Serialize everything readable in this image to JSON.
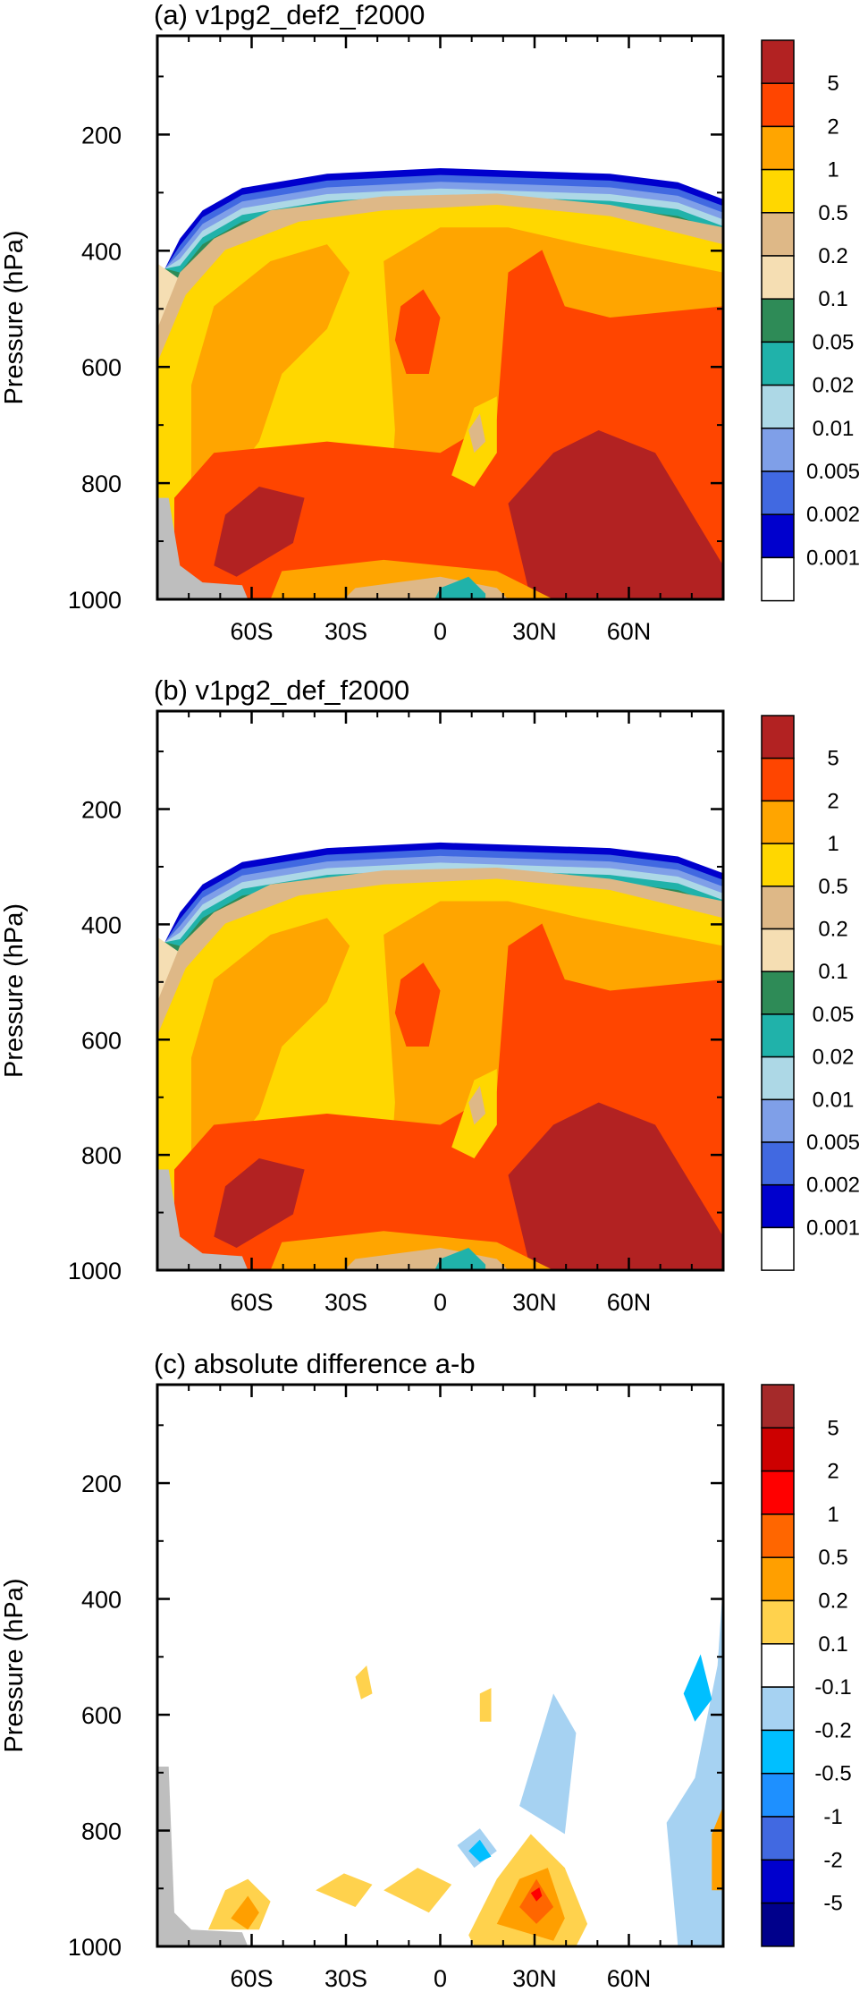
{
  "chart_data": [
    {
      "type": "heatmap",
      "title": "(a) v1pg2_def2_f2000",
      "ylabel": "Pressure (hPa)",
      "xlabel": "",
      "x_ticks": [
        "60S",
        "30S",
        "0",
        "30N",
        "60N"
      ],
      "x_tick_values": [
        -60,
        -30,
        0,
        30,
        60
      ],
      "y_ticks": [
        "200",
        "400",
        "600",
        "800",
        "1000"
      ],
      "y_tick_values": [
        200,
        400,
        600,
        800,
        1000
      ],
      "xlim": [
        -90,
        90
      ],
      "ylim": [
        1000,
        30
      ],
      "legend": "right colorbar",
      "levels": [
        "5",
        "2",
        "1",
        "0.5",
        "0.2",
        "0.1",
        "0.05",
        "0.02",
        "0.01",
        "0.005",
        "0.002",
        "0.001"
      ],
      "colors": [
        "#b22222",
        "#ff4500",
        "#ffa500",
        "#ffd700",
        "#deb887",
        "#f5deb3",
        "#2e8b57",
        "#20b2aa",
        "#add8e6",
        "#7f9fe8",
        "#4169e1",
        "#0000cd",
        "#ffffff"
      ],
      "missing_color": "#bebebe"
    },
    {
      "type": "heatmap",
      "title": "(b) v1pg2_def_f2000",
      "ylabel": "Pressure (hPa)",
      "xlabel": "",
      "x_ticks": [
        "60S",
        "30S",
        "0",
        "30N",
        "60N"
      ],
      "x_tick_values": [
        -60,
        -30,
        0,
        30,
        60
      ],
      "y_ticks": [
        "200",
        "400",
        "600",
        "800",
        "1000"
      ],
      "y_tick_values": [
        200,
        400,
        600,
        800,
        1000
      ],
      "xlim": [
        -90,
        90
      ],
      "ylim": [
        1000,
        30
      ],
      "legend": "right colorbar",
      "levels": [
        "5",
        "2",
        "1",
        "0.5",
        "0.2",
        "0.1",
        "0.05",
        "0.02",
        "0.01",
        "0.005",
        "0.002",
        "0.001"
      ],
      "colors": [
        "#b22222",
        "#ff4500",
        "#ffa500",
        "#ffd700",
        "#deb887",
        "#f5deb3",
        "#2e8b57",
        "#20b2aa",
        "#add8e6",
        "#7f9fe8",
        "#4169e1",
        "#0000cd",
        "#ffffff"
      ],
      "missing_color": "#bebebe"
    },
    {
      "type": "heatmap",
      "title": "(c) absolute difference a-b",
      "ylabel": "Pressure (hPa)",
      "xlabel": "",
      "x_ticks": [
        "60S",
        "30S",
        "0",
        "30N",
        "60N"
      ],
      "x_tick_values": [
        -60,
        -30,
        0,
        30,
        60
      ],
      "y_ticks": [
        "200",
        "400",
        "600",
        "800",
        "1000"
      ],
      "y_tick_values": [
        200,
        400,
        600,
        800,
        1000
      ],
      "xlim": [
        -90,
        90
      ],
      "ylim": [
        1000,
        30
      ],
      "legend": "right colorbar",
      "levels": [
        "5",
        "2",
        "1",
        "0.5",
        "0.2",
        "0.1",
        "-0.1",
        "-0.2",
        "-0.5",
        "-1",
        "-2",
        "-5"
      ],
      "colors": [
        "#a52a2a",
        "#cd0000",
        "#ff0000",
        "#ff6600",
        "#ff9f00",
        "#ffd24d",
        "#ffffff",
        "#a6d2f2",
        "#00bfff",
        "#1e90ff",
        "#4169e1",
        "#0000cd",
        "#00008b"
      ],
      "missing_color": "#bebebe"
    }
  ]
}
